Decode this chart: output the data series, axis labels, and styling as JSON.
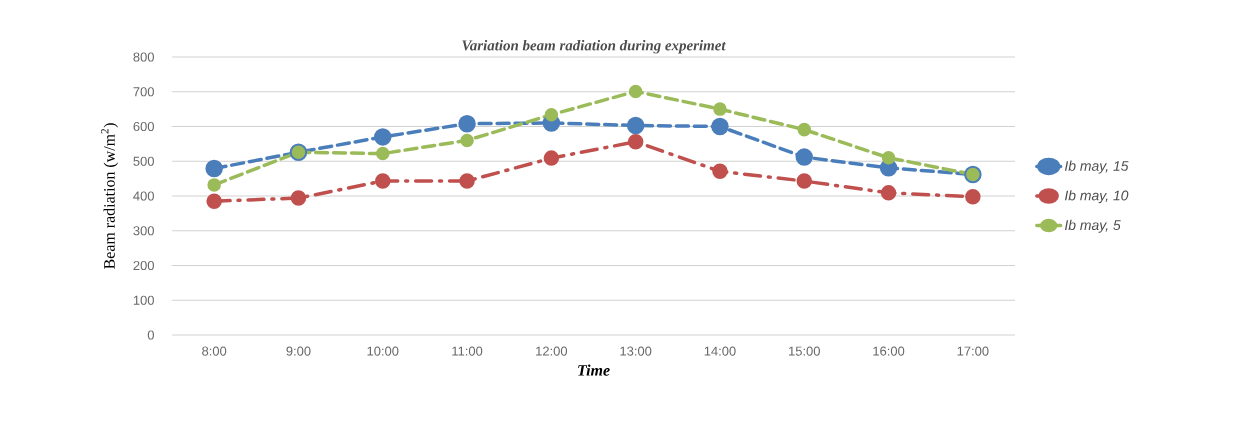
{
  "chart_data": {
    "type": "line",
    "title": "Variation beam radiation during experimet",
    "xlabel": "Time",
    "ylabel": "Beam radiation (w/m$^{2}$)",
    "categories": [
      "8:00",
      "9:00",
      "10:00",
      "11:00",
      "12:00",
      "13:00",
      "14:00",
      "15:00",
      "16:00",
      "17:00"
    ],
    "series": [
      {
        "name": "Ib may, 15",
        "color": "#4a7ebb",
        "line_style": "dashed",
        "values": [
          479,
          526,
          570,
          608,
          610,
          603,
          600,
          512,
          481,
          462
        ]
      },
      {
        "name": "Ib may, 10",
        "color": "#c0504d",
        "line_style": "dashdot",
        "values": [
          385,
          394,
          443,
          443,
          509,
          556,
          471,
          443,
          409,
          398
        ]
      },
      {
        "name": "Ib may, 5",
        "color": "#9bbb59",
        "line_style": "dashed",
        "values": [
          432,
          526,
          522,
          560,
          634,
          701,
          650,
          591,
          510,
          462
        ]
      }
    ],
    "ylim": [
      0,
      800
    ],
    "yticks": [
      0,
      100,
      200,
      300,
      400,
      500,
      600,
      700,
      800
    ],
    "grid": "y",
    "legend": "right",
    "marker": "circle"
  }
}
